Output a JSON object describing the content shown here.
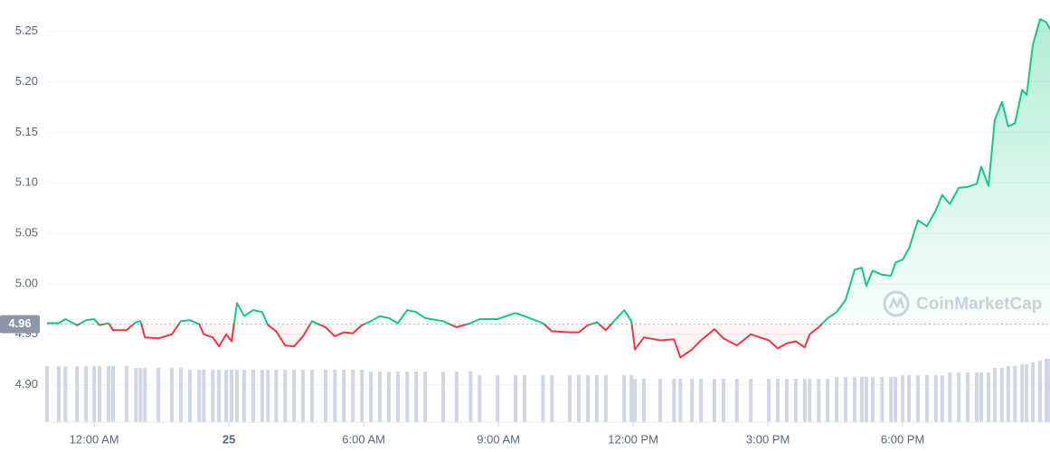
{
  "chart_data": {
    "type": "line",
    "watermark": "CoinMarketCap",
    "reference_price": 4.96,
    "up_color": "#16c784",
    "down_color": "#ea3943",
    "volume_color": "#cfd6e4",
    "x": [
      -1.05,
      -0.79,
      -0.64,
      -0.38,
      -0.18,
      0,
      0.12,
      0.32,
      0.42,
      0.72,
      0.93,
      1.03,
      1.13,
      1.43,
      1.73,
      1.93,
      2.13,
      2.34,
      2.44,
      2.64,
      2.78,
      2.94,
      3.06,
      3.18,
      3.34,
      3.54,
      3.74,
      3.87,
      4.05,
      4.25,
      4.45,
      4.65,
      4.85,
      5.15,
      5.36,
      5.56,
      5.76,
      5.96,
      6.16,
      6.36,
      6.56,
      6.76,
      6.97,
      7.17,
      7.37,
      7.77,
      8.07,
      8.38,
      8.58,
      8.98,
      9.38,
      9.58,
      9.99,
      10.19,
      10.59,
      10.79,
      10.99,
      11.19,
      11.39,
      11.8,
      11.96,
      12.04,
      12.24,
      12.6,
      12.91,
      13.05,
      13.31,
      13.51,
      13.81,
      14.01,
      14.31,
      14.62,
      15.02,
      15.22,
      15.42,
      15.62,
      15.82,
      15.93,
      16.13,
      16.33,
      16.53,
      16.73,
      16.93,
      17.09,
      17.19,
      17.33,
      17.54,
      17.74,
      17.84,
      18.0,
      18.14,
      18.34,
      18.54,
      18.74,
      18.88,
      19.05,
      19.25,
      19.45,
      19.65,
      19.75,
      19.91,
      20.05,
      20.21,
      20.35,
      20.5,
      20.66,
      20.76,
      20.9,
      21.06,
      21.2,
      21.28
    ],
    "values": [
      4.961,
      4.961,
      4.965,
      4.959,
      4.964,
      4.965,
      4.959,
      4.961,
      4.954,
      4.954,
      4.962,
      4.963,
      4.947,
      4.946,
      4.95,
      4.963,
      4.964,
      4.96,
      4.95,
      4.947,
      4.938,
      4.95,
      4.943,
      4.981,
      4.968,
      4.974,
      4.972,
      4.959,
      4.953,
      4.939,
      4.938,
      4.948,
      4.963,
      4.957,
      4.948,
      4.952,
      4.951,
      4.959,
      4.963,
      4.968,
      4.966,
      4.961,
      4.974,
      4.972,
      4.966,
      4.963,
      4.957,
      4.961,
      4.965,
      4.965,
      4.971,
      4.968,
      4.961,
      4.953,
      4.952,
      4.952,
      4.959,
      4.962,
      4.954,
      4.974,
      4.963,
      4.935,
      4.947,
      4.944,
      4.945,
      4.927,
      4.935,
      4.944,
      4.955,
      4.946,
      4.939,
      4.95,
      4.944,
      4.936,
      4.941,
      4.943,
      4.937,
      4.95,
      4.957,
      4.966,
      4.972,
      4.984,
      5.014,
      5.016,
      4.998,
      5.013,
      5.009,
      5.008,
      5.021,
      5.024,
      5.035,
      5.063,
      5.057,
      5.073,
      5.088,
      5.079,
      5.095,
      5.096,
      5.099,
      5.116,
      5.097,
      5.162,
      5.18,
      5.156,
      5.159,
      5.192,
      5.187,
      5.237,
      5.262,
      5.259,
      5.252
    ],
    "volume": [
      62,
      62,
      62,
      62,
      62,
      62,
      62,
      62,
      62,
      62,
      60,
      60,
      60,
      60,
      60,
      60,
      58,
      58,
      58,
      58,
      58,
      58,
      58,
      58,
      58,
      58,
      58,
      58,
      58,
      58,
      58,
      58,
      58,
      58,
      58,
      58,
      58,
      58,
      56,
      56,
      56,
      56,
      56,
      56,
      56,
      56,
      56,
      56,
      52,
      52,
      52,
      52,
      52,
      52,
      52,
      52,
      52,
      52,
      52,
      52,
      52,
      48,
      48,
      48,
      48,
      48,
      48,
      48,
      48,
      48,
      48,
      48,
      48,
      48,
      48,
      48,
      48,
      48,
      48,
      48,
      50,
      50,
      50,
      50,
      50,
      50,
      50,
      50,
      50,
      52,
      52,
      52,
      52,
      52,
      52,
      55,
      55,
      55,
      55,
      55,
      55,
      60,
      60,
      62,
      62,
      64,
      64,
      66,
      68,
      70,
      70
    ],
    "xlim": [
      -1.05,
      21.28
    ],
    "xticks": [
      {
        "value": 0,
        "label": "12:00 AM"
      },
      {
        "value": 3,
        "label": "25"
      },
      {
        "value": 6,
        "label": "6:00 AM"
      },
      {
        "value": 9,
        "label": "9:00 AM"
      },
      {
        "value": 12,
        "label": "12:00 PM"
      },
      {
        "value": 15,
        "label": "3:00 PM"
      },
      {
        "value": 18,
        "label": "6:00 PM"
      }
    ],
    "ylim": [
      4.863,
      5.281
    ],
    "yticks": [
      {
        "value": 4.9,
        "label": "4.90"
      },
      4.95,
      {
        "value": 5.0,
        "label": "5.00"
      },
      5.05,
      {
        "value": 5.1,
        "label": "5.10"
      },
      5.15,
      {
        "value": 5.2,
        "label": "5.20"
      },
      5.25
    ],
    "grid": true
  }
}
